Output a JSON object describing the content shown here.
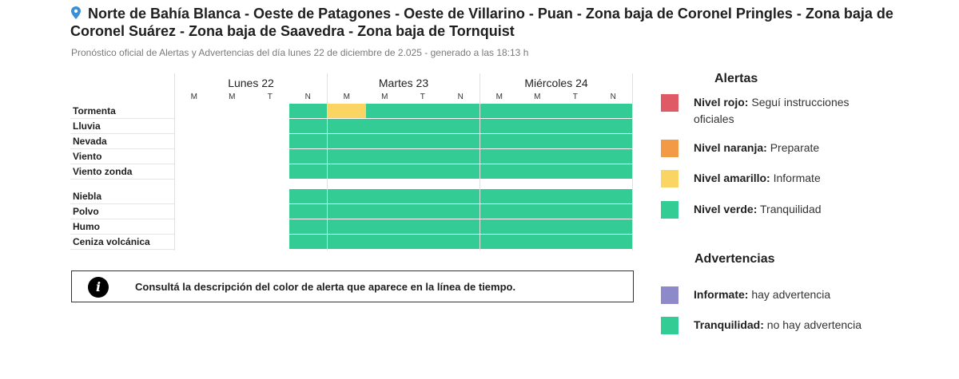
{
  "header": {
    "title": "Norte de Bahía Blanca - Oeste de Patagones - Oeste de Villarino - Puan - Zona baja de Coronel Pringles - Zona baja de Coronel Suárez - Zona baja de Saavedra - Zona baja de Tornquist",
    "subtitle": "Pronóstico oficial de Alertas y Advertencias del día lunes 22 de diciembre de 2.025 - generado a las 18:13 h",
    "location_icon": "location-pin-icon"
  },
  "timeline": {
    "days": [
      {
        "label": "Lunes 22",
        "slots": [
          "M",
          "M",
          "T",
          "N"
        ]
      },
      {
        "label": "Martes 23",
        "slots": [
          "M",
          "M",
          "T",
          "N"
        ]
      },
      {
        "label": "Miércoles 24",
        "slots": [
          "M",
          "M",
          "T",
          "N"
        ]
      }
    ],
    "alerts": [
      {
        "label": "Tormenta",
        "levels": [
          "none",
          "none",
          "none",
          "verde",
          "amarillo",
          "verde",
          "verde",
          "verde",
          "verde",
          "verde",
          "verde",
          "verde"
        ]
      },
      {
        "label": "Lluvia",
        "levels": [
          "none",
          "none",
          "none",
          "verde",
          "verde",
          "verde",
          "verde",
          "verde",
          "verde",
          "verde",
          "verde",
          "verde"
        ]
      },
      {
        "label": "Nevada",
        "levels": [
          "none",
          "none",
          "none",
          "verde",
          "verde",
          "verde",
          "verde",
          "verde",
          "verde",
          "verde",
          "verde",
          "verde"
        ]
      },
      {
        "label": "Viento",
        "levels": [
          "none",
          "none",
          "none",
          "verde",
          "verde",
          "verde",
          "verde",
          "verde",
          "verde",
          "verde",
          "verde",
          "verde"
        ]
      },
      {
        "label": "Viento zonda",
        "levels": [
          "none",
          "none",
          "none",
          "verde",
          "verde",
          "verde",
          "verde",
          "verde",
          "verde",
          "verde",
          "verde",
          "verde"
        ]
      }
    ],
    "warnings": [
      {
        "label": "Niebla",
        "levels": [
          "none",
          "none",
          "none",
          "verde",
          "verde",
          "verde",
          "verde",
          "verde",
          "verde",
          "verde",
          "verde",
          "verde"
        ]
      },
      {
        "label": "Polvo",
        "levels": [
          "none",
          "none",
          "none",
          "verde",
          "verde",
          "verde",
          "verde",
          "verde",
          "verde",
          "verde",
          "verde",
          "verde"
        ]
      },
      {
        "label": "Humo",
        "levels": [
          "none",
          "none",
          "none",
          "verde",
          "verde",
          "verde",
          "verde",
          "verde",
          "verde",
          "verde",
          "verde",
          "verde"
        ]
      },
      {
        "label": "Ceniza volcánica",
        "levels": [
          "none",
          "none",
          "none",
          "verde",
          "verde",
          "verde",
          "verde",
          "verde",
          "verde",
          "verde",
          "verde",
          "verde"
        ]
      }
    ]
  },
  "info": {
    "icon": "info-icon",
    "text": "Consultá la descripción del color de alerta que aparece en la línea de tiempo."
  },
  "legend": {
    "alerts_title": "Alertas",
    "alerts": [
      {
        "key": "rojo",
        "strong": "Nivel rojo:",
        "text": " Seguí instrucciones oficiales",
        "color": "#e05a66"
      },
      {
        "key": "naranja",
        "strong": "Nivel naranja:",
        "text": " Preparate",
        "color": "#f29a45"
      },
      {
        "key": "amarillo",
        "strong": "Nivel amarillo:",
        "text": " Informate",
        "color": "#fbd564"
      },
      {
        "key": "verde",
        "strong": "Nivel verde:",
        "text": " Tranquilidad",
        "color": "#33cc94"
      }
    ],
    "warnings_title": "Advertencias",
    "warnings": [
      {
        "key": "informate",
        "strong": "Informate:",
        "text": " hay advertencia",
        "color": "#8e89c9"
      },
      {
        "key": "tranquilidad",
        "strong": "Tranquilidad:",
        "text": " no hay advertencia",
        "color": "#33cc94"
      }
    ]
  },
  "colors": {
    "verde": "#33cc94",
    "amarillo": "#fbd564",
    "naranja": "#f29a45",
    "rojo": "#e05a66",
    "violeta": "#8e89c9"
  }
}
